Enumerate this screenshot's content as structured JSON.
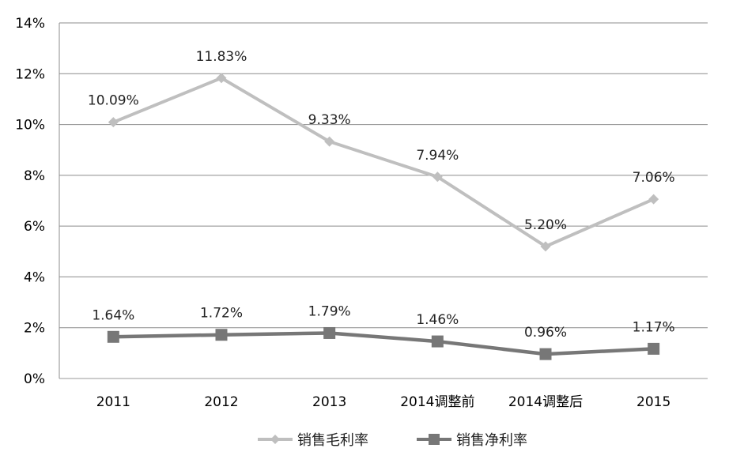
{
  "chart_data": {
    "type": "line",
    "categories": [
      "2011",
      "2012",
      "2013",
      "2014调整前",
      "2014调整后",
      "2015"
    ],
    "y_ticks": [
      "0%",
      "2%",
      "4%",
      "6%",
      "8%",
      "10%",
      "12%",
      "14%"
    ],
    "ylim": [
      0,
      14
    ],
    "grid": true,
    "legend_position": "bottom",
    "series": [
      {
        "name": "销售毛利率",
        "values": [
          10.09,
          11.83,
          9.33,
          7.94,
          5.2,
          7.06
        ],
        "labels": [
          "10.09%",
          "11.83%",
          "9.33%",
          "7.94%",
          "5.20%",
          "7.06%"
        ],
        "color": "#bfbfbf",
        "marker": "diamond"
      },
      {
        "name": "销售净利率",
        "values": [
          1.64,
          1.72,
          1.79,
          1.46,
          0.96,
          1.17
        ],
        "labels": [
          "1.64%",
          "1.72%",
          "1.79%",
          "1.46%",
          "0.96%",
          "1.17%"
        ],
        "color": "#777777",
        "marker": "square"
      }
    ]
  }
}
